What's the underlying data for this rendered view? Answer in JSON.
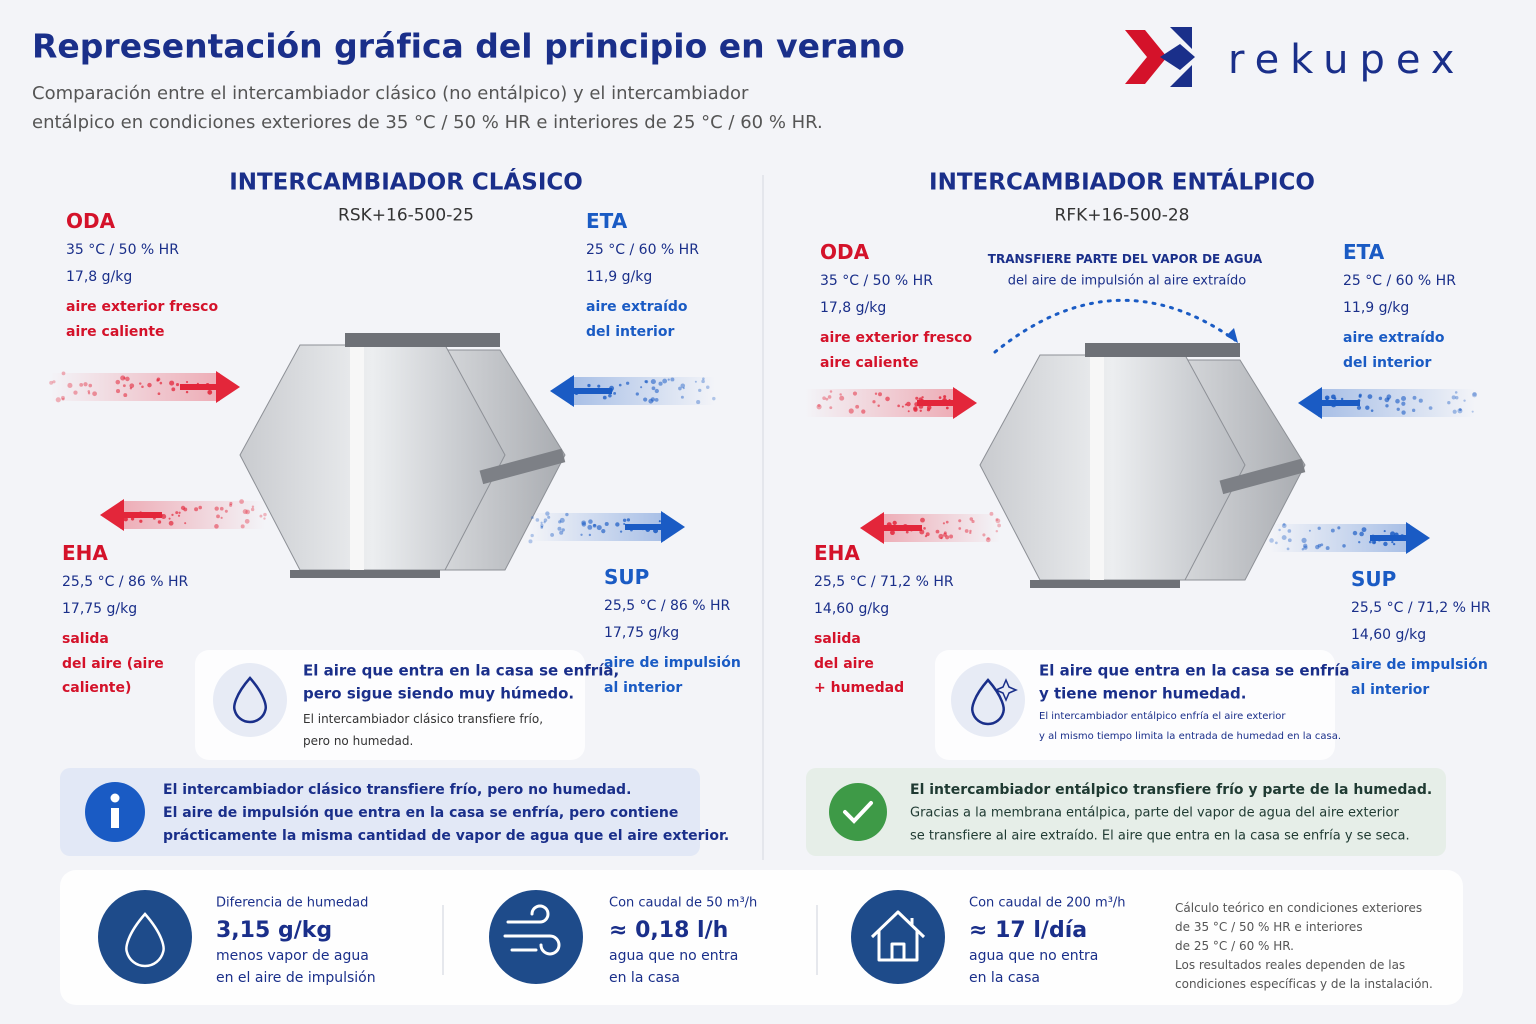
{
  "header": {
    "title": "Representación gráfica del principio en verano",
    "subtitle": [
      "Comparación entre el intercambiador clásico (no entálpico) y el intercambiador",
      "entálpico en condiciones exteriores de 35 °C / 50 % HR e interiores de 25 °C / 60 % HR."
    ],
    "logo": "rekupex"
  },
  "panels": [
    {
      "title": "INTERCAMBIADOR CLÁSICO",
      "model": "RSK+16-500-25",
      "oda": {
        "label": "ODA",
        "lines": [
          "35 °C / 50 % HR",
          "17,8 g/kg"
        ],
        "desc": [
          "aire exterior fresco",
          "aire caliente"
        ]
      },
      "eta": {
        "label": "ETA",
        "lines": [
          "25 °C / 60 % HR",
          "11,9 g/kg"
        ],
        "desc": [
          "aire extraído",
          "del interior"
        ]
      },
      "eha": {
        "label": "EHA",
        "lines": [
          "25,5 °C / 86 % HR",
          "17,75 g/kg"
        ],
        "desc": [
          "salida",
          "del aire (aire",
          "caliente)"
        ]
      },
      "sup": {
        "label": "SUP",
        "lines": [
          "25,5 °C / 86 % HR",
          "17,75 g/kg"
        ],
        "desc": [
          "aire de impulsión",
          "al interior"
        ]
      },
      "note": {
        "title": [
          "El aire que entra en la casa se enfría,",
          "pero sigue siendo muy húmedo."
        ],
        "body": [
          "El intercambiador clásico transfiere frío,",
          "pero no humedad."
        ]
      },
      "banner": [
        "El intercambiador clásico transfiere frío, pero no humedad.",
        "El aire de impulsión que entra en la casa se enfría, pero contiene",
        "prácticamente la misma cantidad de vapor de agua que el aire exterior."
      ]
    },
    {
      "title": "INTERCAMBIADOR ENTÁLPICO",
      "model": "RFK+16-500-28",
      "annotation": [
        "TRANSFIERE PARTE DEL VAPOR DE AGUA",
        "del aire de impulsión al aire extraído"
      ],
      "oda": {
        "label": "ODA",
        "lines": [
          "35 °C / 50 % HR",
          "17,8 g/kg"
        ],
        "desc": [
          "aire exterior fresco",
          "aire caliente"
        ]
      },
      "eta": {
        "label": "ETA",
        "lines": [
          "25 °C / 60 % HR",
          "11,9 g/kg"
        ],
        "desc": [
          "aire extraído",
          "del interior"
        ]
      },
      "eha": {
        "label": "EHA",
        "lines": [
          "25,5 °C / 71,2 % HR",
          "14,60 g/kg"
        ],
        "desc": [
          "salida",
          "del aire",
          "+ humedad"
        ]
      },
      "sup": {
        "label": "SUP",
        "lines": [
          "25,5 °C / 71,2 % HR",
          "14,60 g/kg"
        ],
        "desc": [
          "aire de impulsión",
          "al interior"
        ]
      },
      "note": {
        "title": [
          "El aire que entra en la casa se enfría",
          "y tiene menor humedad."
        ],
        "body": [
          "El intercambiador entálpico enfría el aire exterior",
          "y al mismo tiempo limita la entrada de humedad en la casa."
        ]
      },
      "banner": [
        "El intercambiador entálpico transfiere frío y parte de la humedad.",
        "Gracias a la membrana entálpica, parte del vapor de agua del aire exterior",
        "se transfiere al aire extraído. El aire que entra en la casa se enfría y se seca."
      ]
    }
  ],
  "stats": [
    {
      "label": "Diferencia de humedad",
      "value": "3,15 g/kg",
      "desc": [
        "menos vapor de agua",
        "en el aire de impulsión"
      ]
    },
    {
      "label": "Con caudal de 50 m³/h",
      "value": "≈ 0,18 l/h",
      "desc": [
        "agua que no entra",
        "en la casa"
      ]
    },
    {
      "label": "Con caudal de 200 m³/h",
      "value": "≈ 17 l/día",
      "desc": [
        "agua que no entra",
        "en la casa"
      ]
    }
  ],
  "footnote": [
    "Cálculo teórico en condiciones exteriores",
    "de 35 °C / 50 % HR e interiores",
    "de 25 °C / 60 % HR.",
    "Los resultados reales dependen de las",
    "condiciones específicas y de la instalación."
  ]
}
